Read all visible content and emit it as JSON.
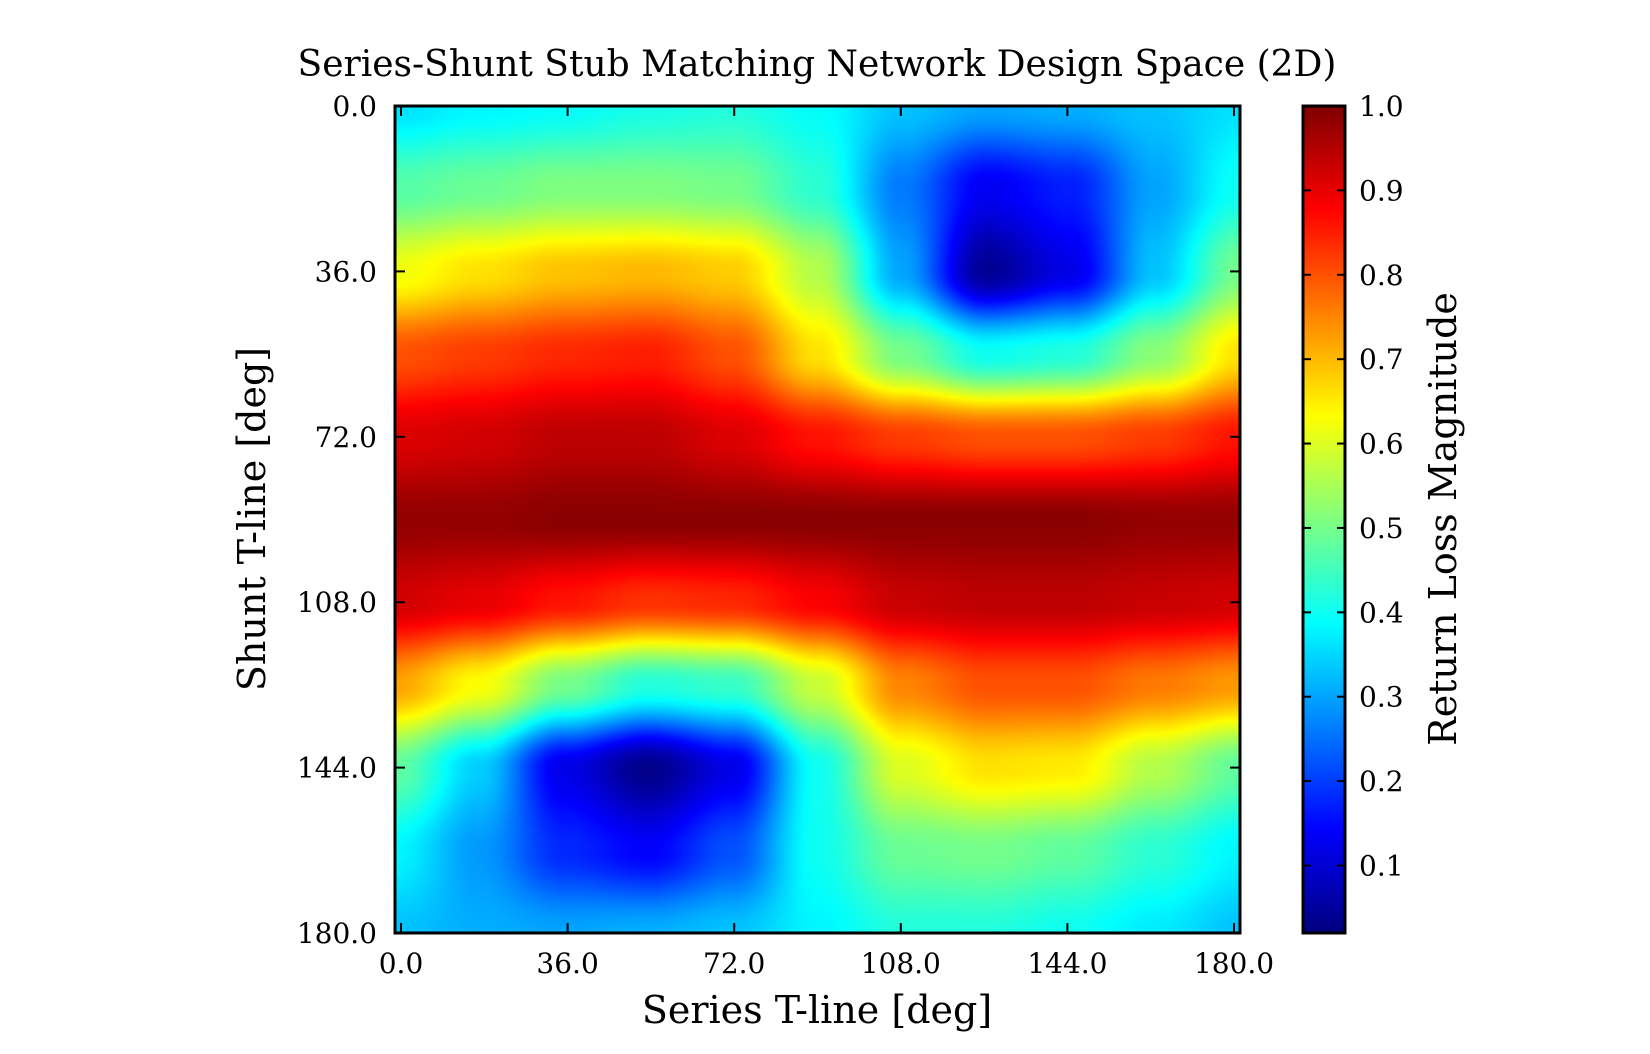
{
  "chart_data": {
    "type": "heatmap",
    "title": "Series-Shunt Stub Matching Network Design Space (2D)",
    "xlabel": "Series T-line [deg]",
    "ylabel": "Shunt T-line [deg]",
    "xlim": [
      0,
      180
    ],
    "ylim": [
      0,
      180
    ],
    "y_axis_inverted": true,
    "x_ticks": [
      "0.0",
      "36.0",
      "72.0",
      "108.0",
      "144.0",
      "180.0"
    ],
    "y_ticks": [
      "0.0",
      "36.0",
      "72.0",
      "108.0",
      "144.0",
      "180.0"
    ],
    "colorbar": {
      "label": "Return Loss Magnitude",
      "colormap": "jet",
      "range": [
        0.02,
        1.0
      ],
      "ticks": [
        "0.1",
        "0.2",
        "0.3",
        "0.4",
        "0.5",
        "0.6",
        "0.7",
        "0.8",
        "0.9",
        "1.0"
      ]
    },
    "x": [
      0,
      18,
      36,
      54,
      72,
      90,
      108,
      126,
      144,
      162,
      180
    ],
    "y": [
      0,
      18,
      36,
      54,
      72,
      90,
      108,
      126,
      144,
      162,
      180
    ],
    "z": [
      [
        0.36,
        0.38,
        0.39,
        0.41,
        0.42,
        0.39,
        0.33,
        0.3,
        0.31,
        0.33,
        0.36
      ],
      [
        0.47,
        0.49,
        0.51,
        0.51,
        0.5,
        0.43,
        0.26,
        0.13,
        0.17,
        0.3,
        0.4
      ],
      [
        0.62,
        0.66,
        0.69,
        0.7,
        0.68,
        0.56,
        0.3,
        0.04,
        0.12,
        0.33,
        0.5
      ],
      [
        0.8,
        0.82,
        0.84,
        0.85,
        0.8,
        0.66,
        0.5,
        0.4,
        0.42,
        0.52,
        0.66
      ],
      [
        0.91,
        0.92,
        0.94,
        0.94,
        0.91,
        0.86,
        0.82,
        0.8,
        0.8,
        0.82,
        0.86
      ],
      [
        0.98,
        0.98,
        0.99,
        0.99,
        0.99,
        0.99,
        0.99,
        0.99,
        0.99,
        0.98,
        0.98
      ],
      [
        0.92,
        0.9,
        0.86,
        0.83,
        0.84,
        0.88,
        0.93,
        0.94,
        0.94,
        0.93,
        0.92
      ],
      [
        0.72,
        0.63,
        0.5,
        0.42,
        0.44,
        0.58,
        0.75,
        0.8,
        0.8,
        0.76,
        0.73
      ],
      [
        0.48,
        0.34,
        0.12,
        0.03,
        0.12,
        0.4,
        0.6,
        0.66,
        0.65,
        0.56,
        0.48
      ],
      [
        0.38,
        0.29,
        0.18,
        0.14,
        0.22,
        0.4,
        0.49,
        0.5,
        0.48,
        0.43,
        0.38
      ],
      [
        0.33,
        0.31,
        0.3,
        0.31,
        0.33,
        0.38,
        0.42,
        0.42,
        0.4,
        0.37,
        0.33
      ]
    ]
  }
}
